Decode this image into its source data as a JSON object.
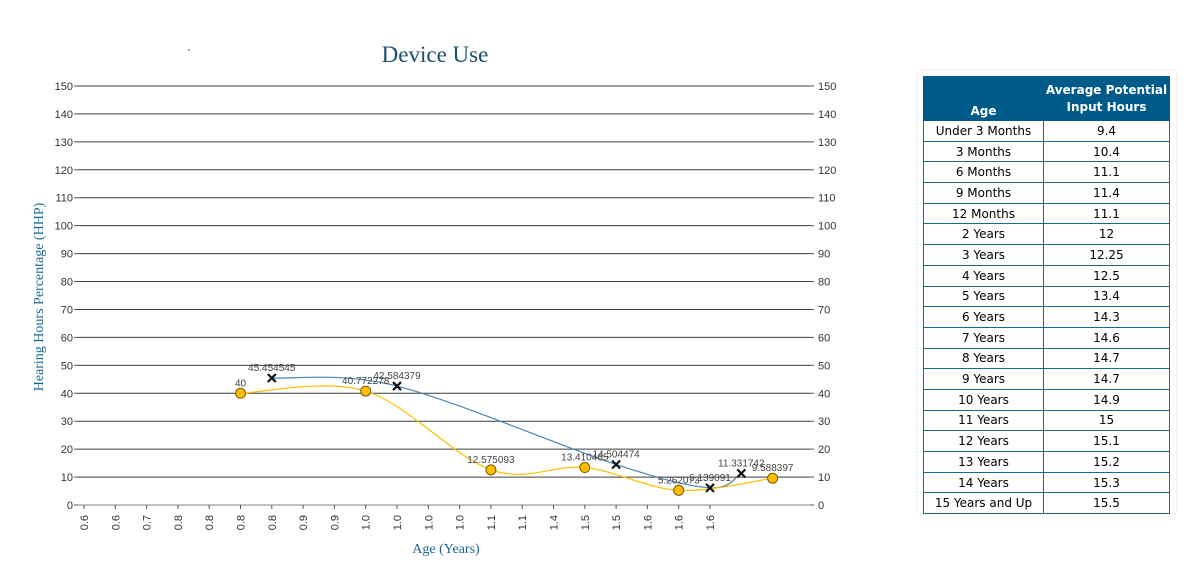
{
  "chart_data": {
    "type": "line",
    "title": "Device Use",
    "xlabel": "Age (Years)",
    "ylabel": "Hearing Hours Percentage (HHP)",
    "ylim": [
      0,
      150
    ],
    "yticks": [
      0,
      10,
      20,
      30,
      40,
      50,
      60,
      70,
      80,
      90,
      100,
      110,
      120,
      130,
      140,
      150
    ],
    "xtick_labels": [
      "0.6",
      "0.6",
      "0.7",
      "0.8",
      "0.8",
      "0.8",
      "0.8",
      "0.9",
      "0.9",
      "1.0",
      "1.0",
      "1.0",
      "1.0",
      "1.1",
      "1.1",
      "1.4",
      "1.5",
      "1.5",
      "1.6",
      "1.6",
      "1.6"
    ],
    "grid": true,
    "legend": "none",
    "series": [
      {
        "marker": "x",
        "color": "#4a86b4",
        "points": [
          {
            "xi": 6,
            "y": 45.454545,
            "label": "45.454545"
          },
          {
            "xi": 10,
            "y": 42.584379,
            "label": "42.584379"
          },
          {
            "xi": 17,
            "y": 14.504474,
            "label": "14.504474"
          },
          {
            "xi": 20,
            "y": 6.139091,
            "label": "6.139091"
          },
          {
            "xi": 21,
            "y": 11.331742,
            "label": "11.331742"
          }
        ]
      },
      {
        "marker": "circle",
        "color": "#ffbe00",
        "points": [
          {
            "xi": 5,
            "y": 40,
            "label": "40"
          },
          {
            "xi": 9,
            "y": 40.772278,
            "label": "40.772278"
          },
          {
            "xi": 13,
            "y": 12.575093,
            "label": "12.575093"
          },
          {
            "xi": 16,
            "y": 13.410465,
            "label": "13.410465"
          },
          {
            "xi": 19,
            "y": 5.262073,
            "label": "5.262073"
          },
          {
            "xi": 22,
            "y": 9.588397,
            "label": "9.588397"
          }
        ]
      }
    ]
  },
  "table": {
    "headers": {
      "age": "Age",
      "hours_line1": "Average Potential",
      "hours_line2": "Input Hours"
    },
    "rows": [
      {
        "age": "Under 3 Months",
        "hours": "9.4"
      },
      {
        "age": "3 Months",
        "hours": "10.4"
      },
      {
        "age": "6 Months",
        "hours": "11.1"
      },
      {
        "age": "9 Months",
        "hours": "11.4"
      },
      {
        "age": "12 Months",
        "hours": "11.1"
      },
      {
        "age": "2 Years",
        "hours": "12"
      },
      {
        "age": "3 Years",
        "hours": "12.25"
      },
      {
        "age": "4 Years",
        "hours": "12.5"
      },
      {
        "age": "5 Years",
        "hours": "13.4"
      },
      {
        "age": "6 Years",
        "hours": "14.3"
      },
      {
        "age": "7 Years",
        "hours": "14.6"
      },
      {
        "age": "8 Years",
        "hours": "14.7"
      },
      {
        "age": "9 Years",
        "hours": "14.7"
      },
      {
        "age": "10 Years",
        "hours": "14.9"
      },
      {
        "age": "11 Years",
        "hours": "15"
      },
      {
        "age": "12 Years",
        "hours": "15.1"
      },
      {
        "age": "13 Years",
        "hours": "15.2"
      },
      {
        "age": "14 Years",
        "hours": "15.3"
      },
      {
        "age": "15 Years and Up",
        "hours": "15.5"
      }
    ]
  }
}
